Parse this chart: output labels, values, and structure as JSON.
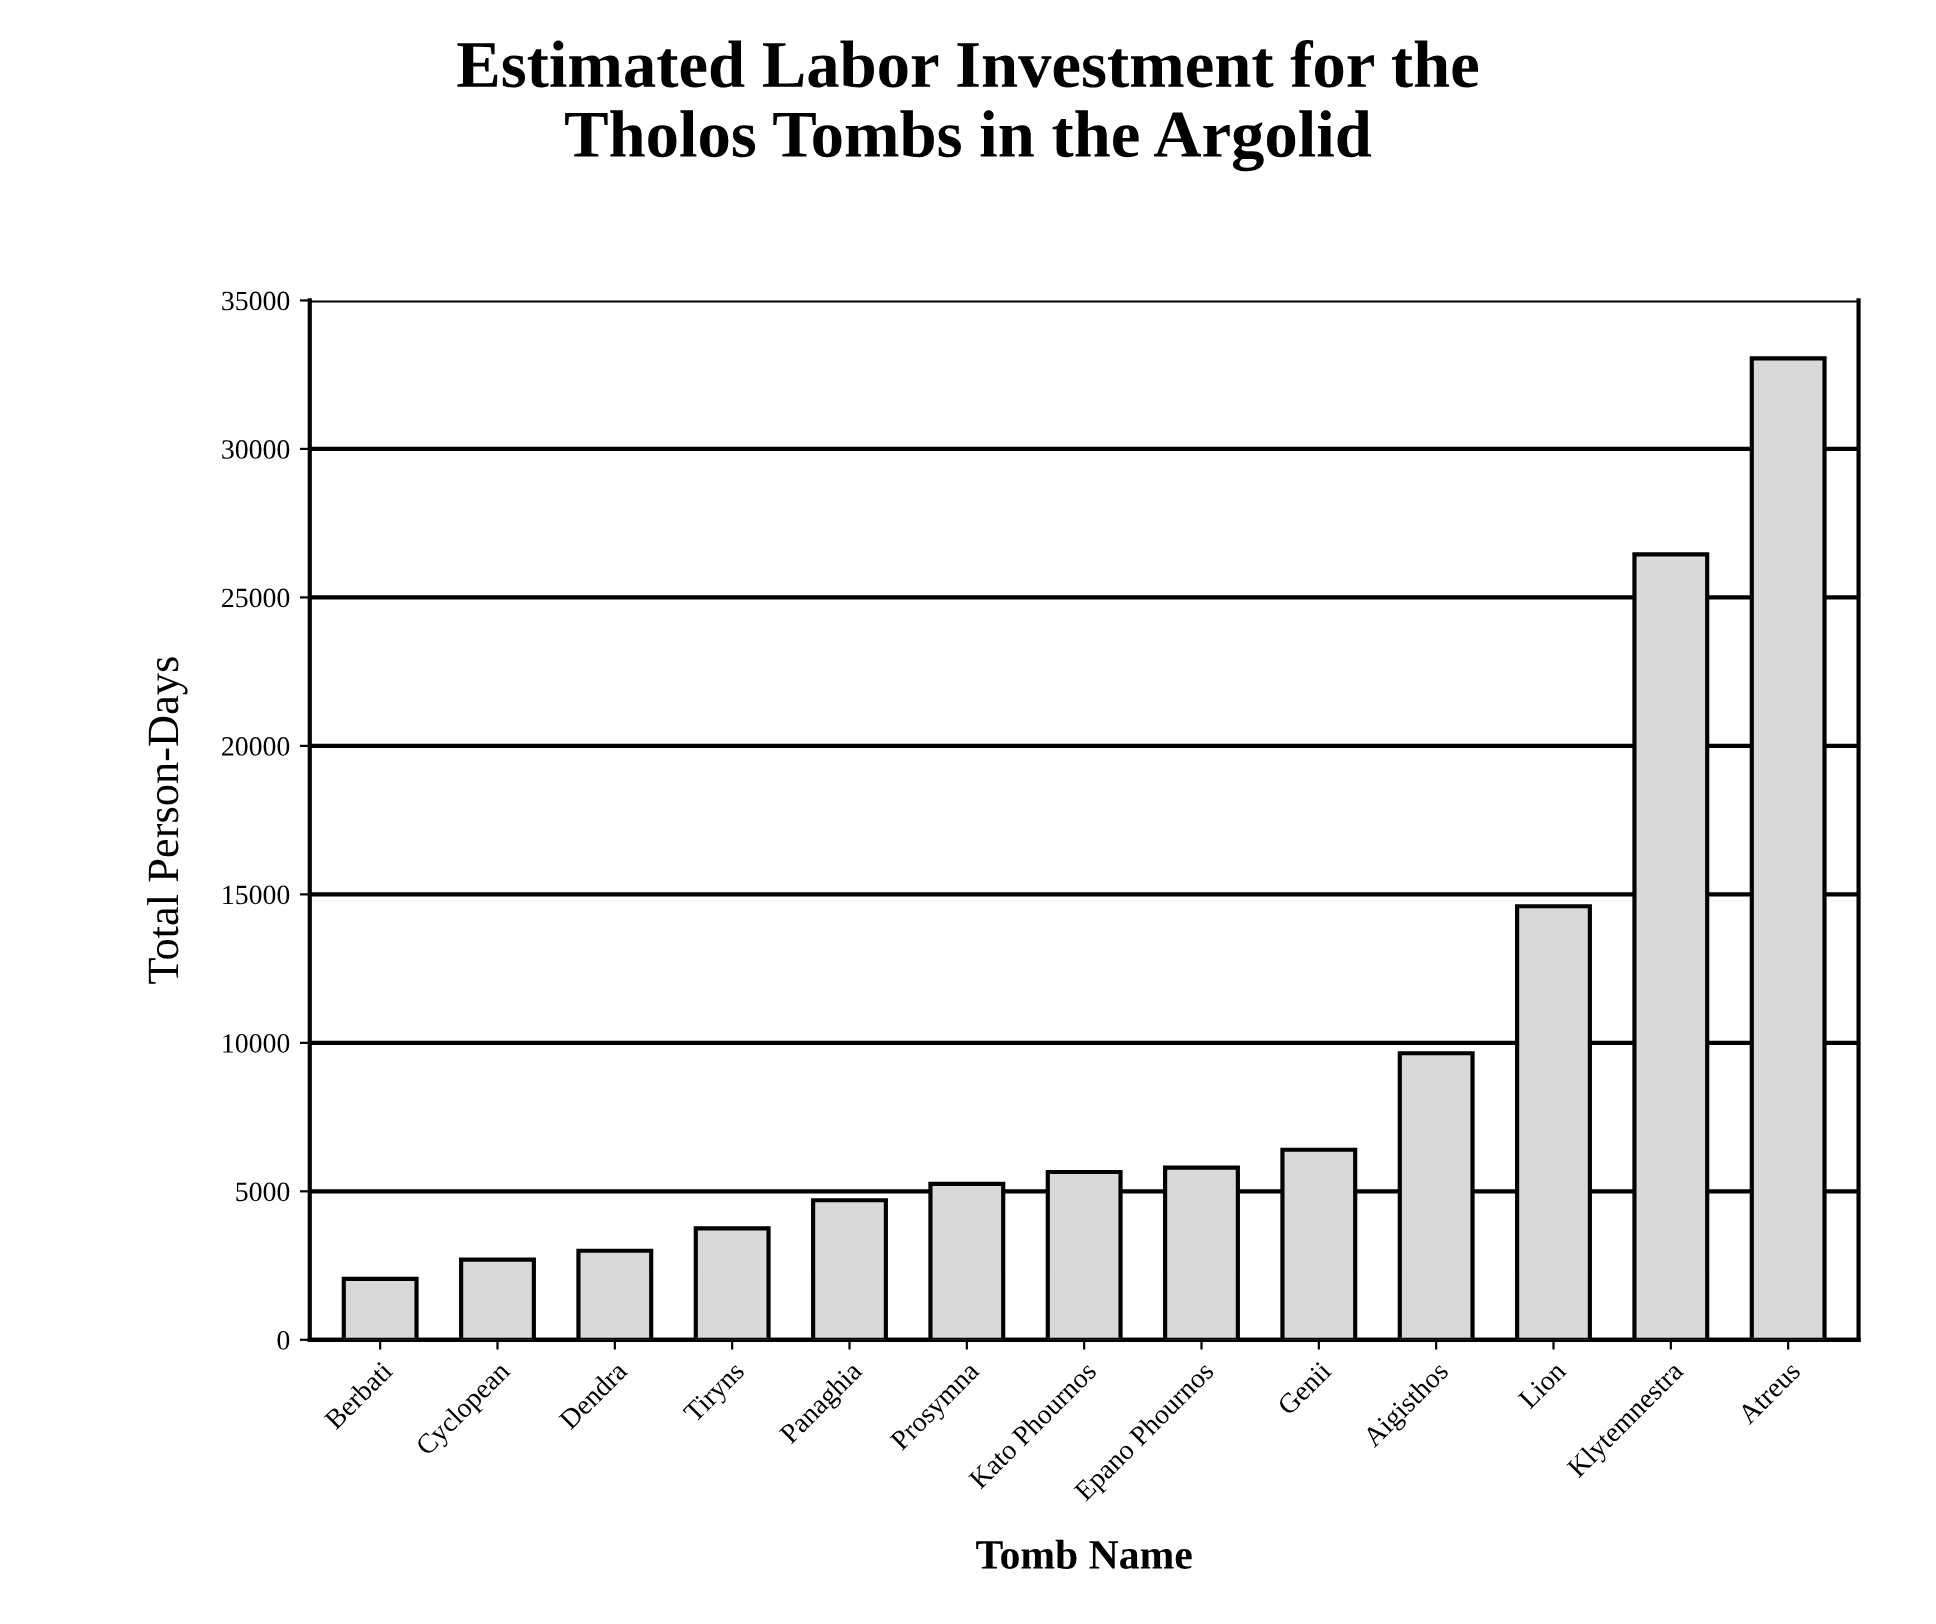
{
  "chart_data": {
    "type": "bar",
    "title": "Estimated Labor Investment for the\nTholos Tombs in the Argolid",
    "xlabel": "Tomb Name",
    "ylabel": "Total Person-Days",
    "categories": [
      "Berbati",
      "Cyclopean",
      "Dendra",
      "Tiryns",
      "Panaghia",
      "Prosymna",
      "Kato Phournos",
      "Epano Phournos",
      "Genii",
      "Aigisthos",
      "Lion",
      "Klytemnestra",
      "Atreus"
    ],
    "values": [
      2050,
      2700,
      3000,
      3750,
      4700,
      5250,
      5650,
      5800,
      6400,
      9650,
      14600,
      26450,
      33050
    ],
    "color": "#d9d9d9",
    "ylim": [
      0,
      35000
    ],
    "yticks": [
      0,
      5000,
      10000,
      15000,
      20000,
      25000,
      30000,
      35000
    ],
    "grid": "y",
    "legend": false
  }
}
